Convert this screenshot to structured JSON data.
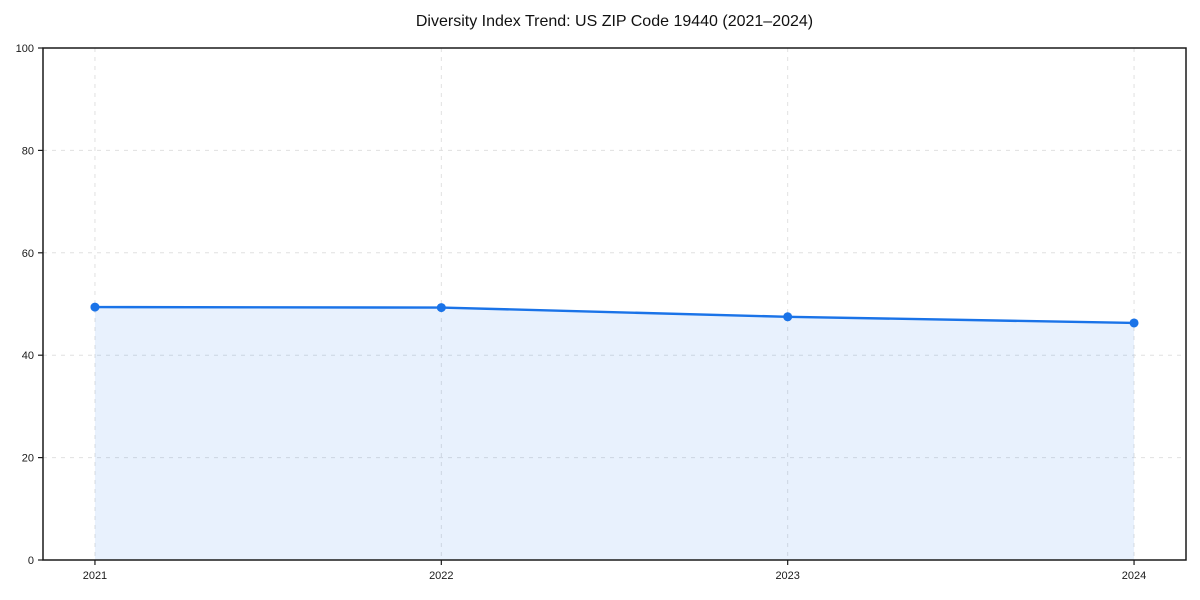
{
  "title": "Diversity Index Trend: US ZIP Code 19440 (2021–2024)",
  "chart_data": {
    "type": "area",
    "title": "Diversity Index Trend: US ZIP Code 19440 (2021–2024)",
    "x": [
      "2021",
      "2022",
      "2023",
      "2024"
    ],
    "series": [
      {
        "name": "Diversity Index",
        "values": [
          49.4,
          49.3,
          47.5,
          46.3
        ]
      }
    ],
    "xlabel": "",
    "ylabel": "",
    "ylim": [
      0,
      100
    ],
    "yticks": [
      0,
      20,
      40,
      60,
      80,
      100
    ],
    "grid": true,
    "grid_style": "dashed",
    "legend": "none",
    "line_color": "#1a73e8",
    "marker": "circle",
    "fill_color": "#1a73e8",
    "fill_opacity": 0.1
  },
  "colors": {
    "background": "#ffffff",
    "grid": "#e0e0e0",
    "axis": "#1a1a1a",
    "tick_label": "#1a1a1a"
  }
}
